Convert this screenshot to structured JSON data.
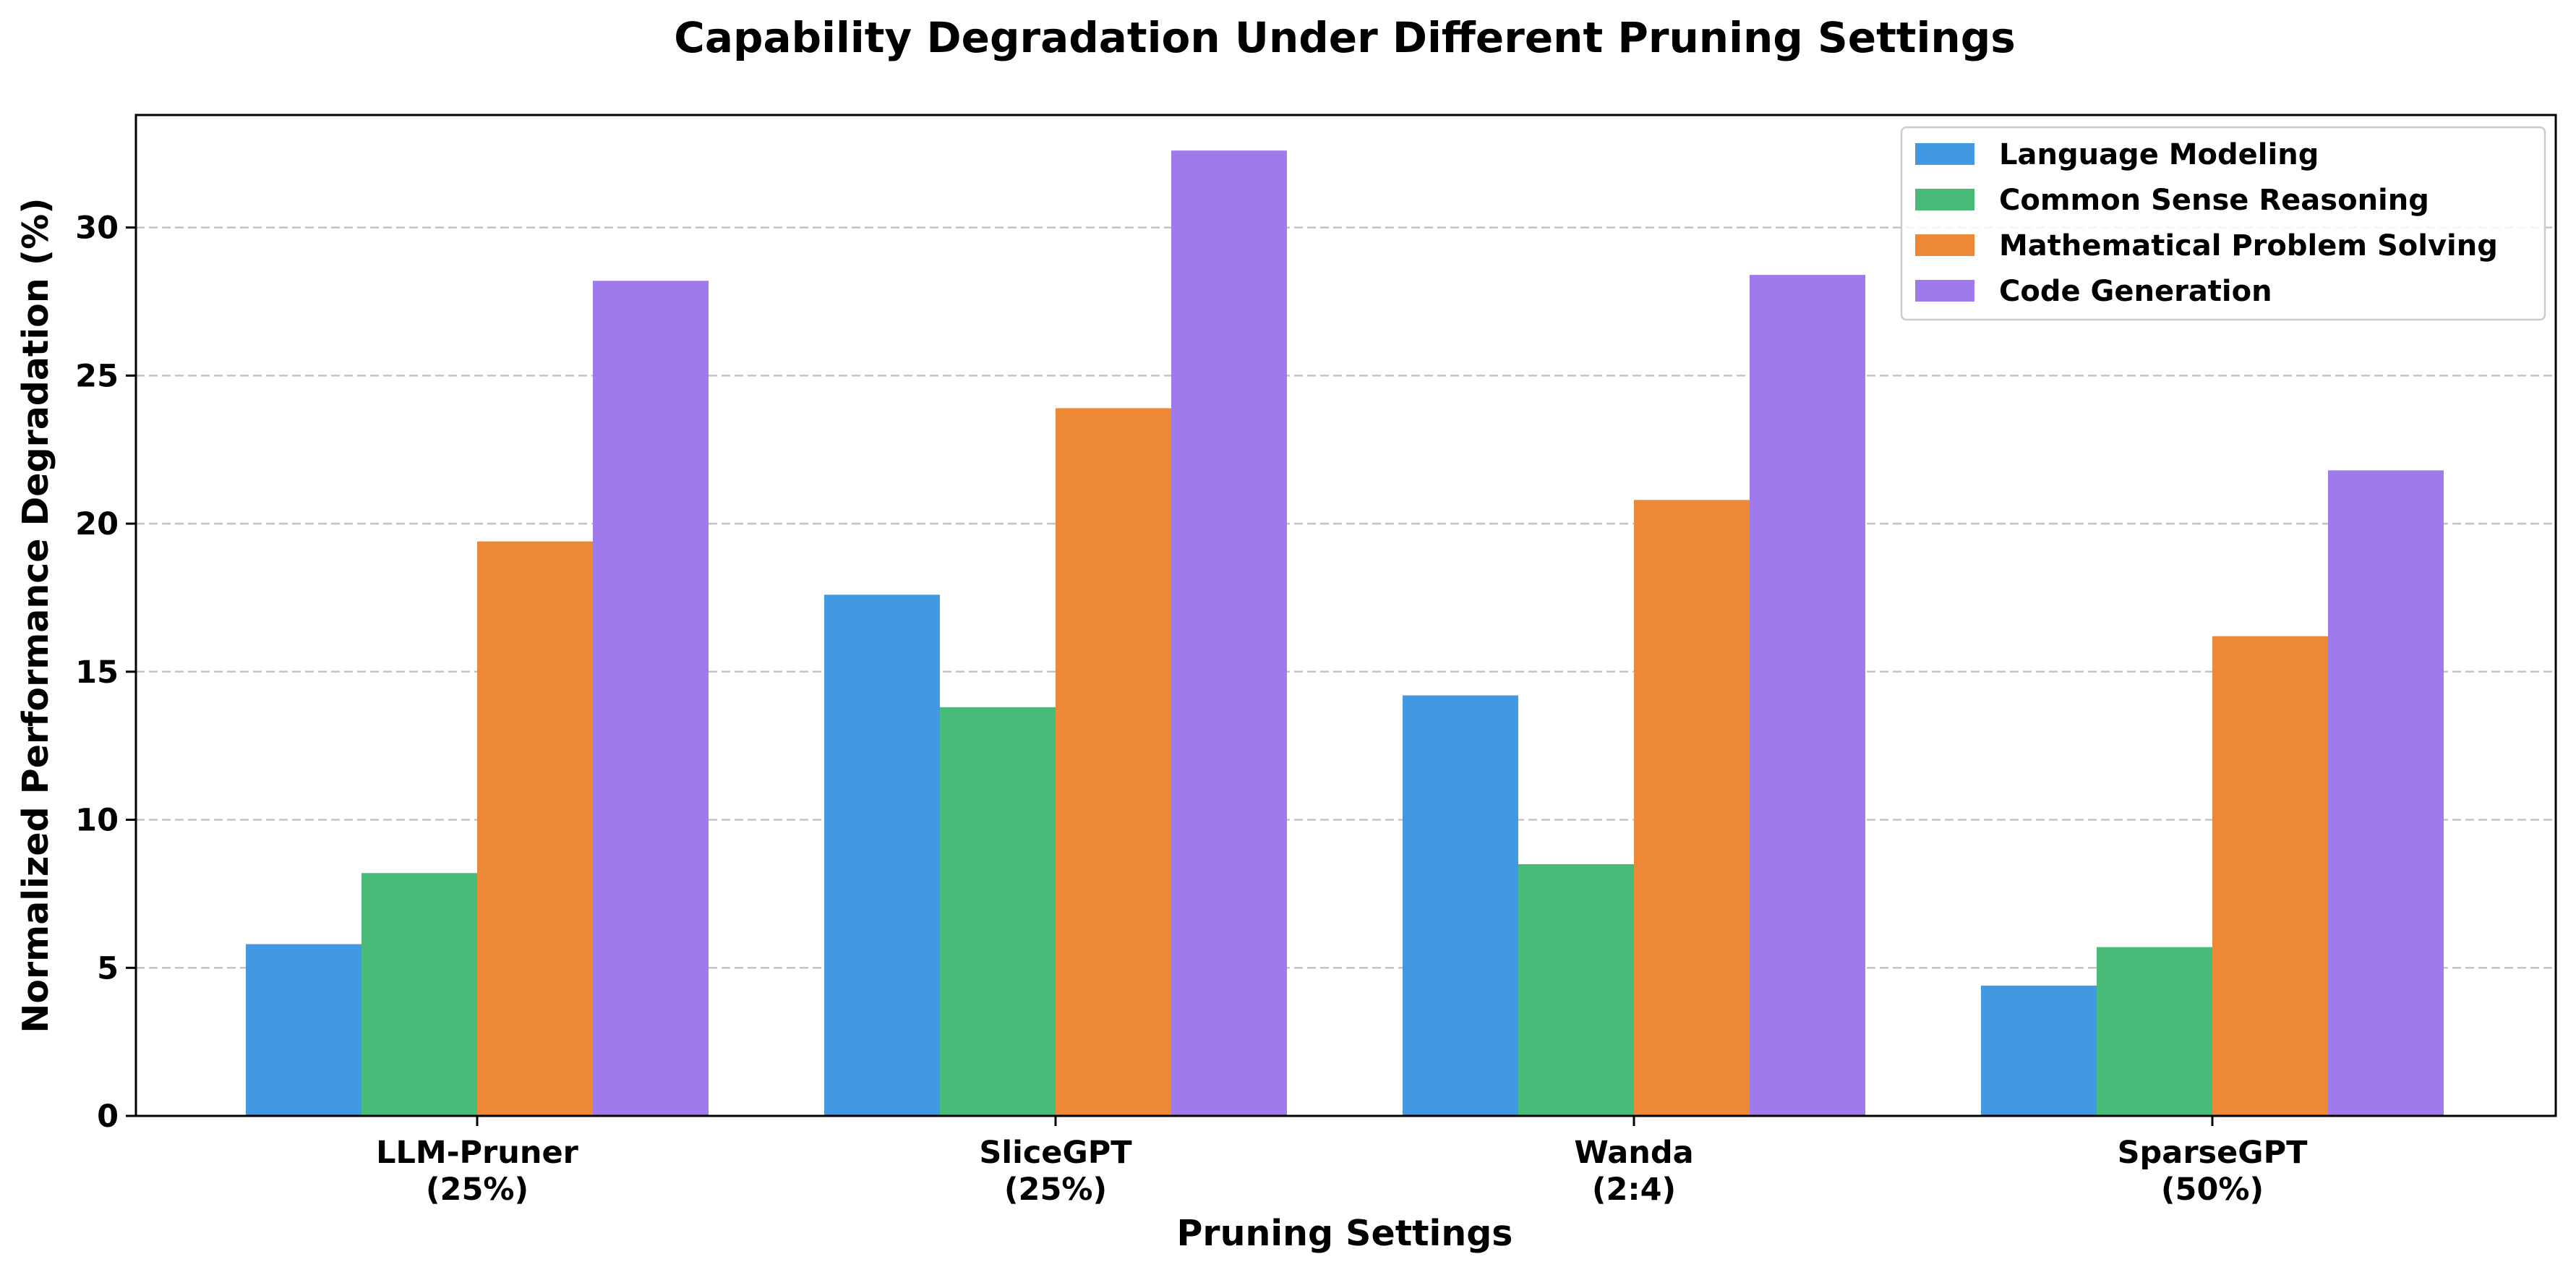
{
  "chart_data": {
    "type": "bar",
    "title": "Capability Degradation Under Different Pruning Settings",
    "xlabel": "Pruning Settings",
    "ylabel": "Normalized Performance Degradation (%)",
    "ylim": [
      0,
      33.8
    ],
    "yticks": [
      0,
      5,
      10,
      15,
      20,
      25,
      30
    ],
    "grid": "horizontal dashed",
    "legend_position": "top-right",
    "categories": [
      [
        "LLM-Pruner",
        "(25%)"
      ],
      [
        "SliceGPT",
        "(25%)"
      ],
      [
        "Wanda",
        "(2:4)"
      ],
      [
        "SparseGPT",
        "(50%)"
      ]
    ],
    "series": [
      {
        "name": "Language Modeling",
        "color": "#4299e1",
        "values": [
          5.8,
          17.6,
          14.2,
          4.4
        ]
      },
      {
        "name": "Common Sense Reasoning",
        "color": "#48bb78",
        "values": [
          8.2,
          13.8,
          8.5,
          5.7
        ]
      },
      {
        "name": "Mathematical Problem Solving",
        "color": "#ed8936",
        "values": [
          19.4,
          23.9,
          20.8,
          16.2
        ]
      },
      {
        "name": "Code Generation",
        "color": "#9f7aea",
        "values": [
          28.2,
          32.6,
          28.4,
          21.8
        ]
      }
    ]
  }
}
